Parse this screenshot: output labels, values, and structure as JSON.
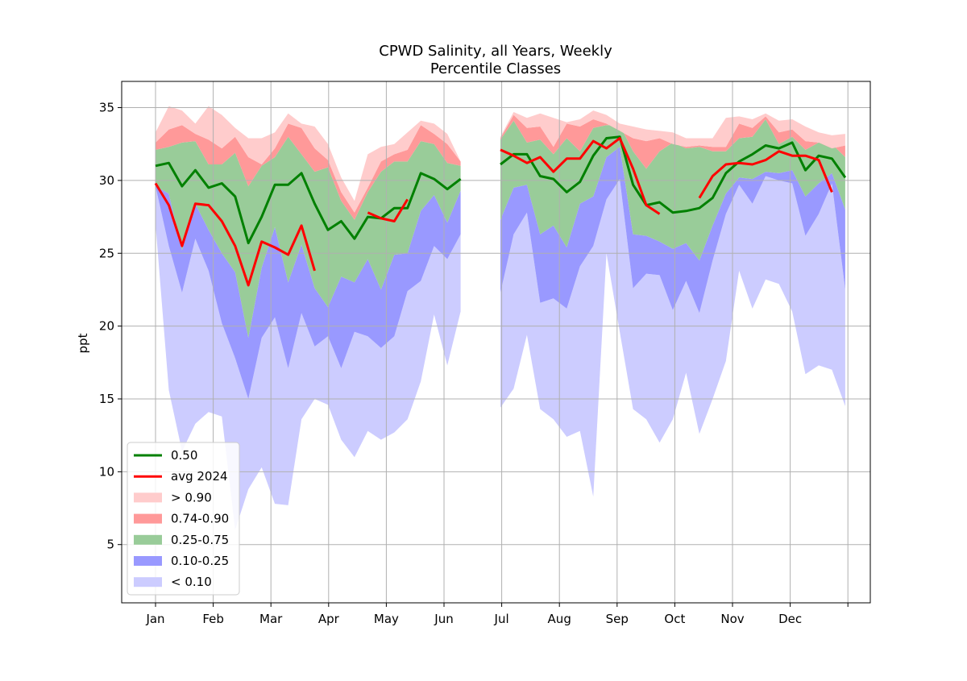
{
  "chart_data": {
    "type": "area",
    "title": "CPWD Salinity, all Years, Weekly",
    "subtitle": "Percentile Classes",
    "xlabel": "",
    "ylabel": "ppt",
    "ylim": [
      1.0,
      36.8
    ],
    "yticks": [
      5,
      10,
      15,
      20,
      25,
      30,
      35
    ],
    "xlim": [
      -0.55,
      12.5
    ],
    "x_tick_positions": [
      0,
      1,
      2,
      3,
      4,
      5,
      6,
      7,
      8,
      9,
      10,
      11,
      12
    ],
    "x_tick_labels": [
      "Jan",
      "Feb",
      "Mar",
      "Apr",
      "May",
      "Jun",
      "Jul",
      "Aug",
      "Sep",
      "Oct",
      "Nov",
      "Dec",
      ""
    ],
    "grid": true,
    "legend_position": "lower-left",
    "legend": [
      {
        "label": "0.50",
        "kind": "line",
        "color": "#008000"
      },
      {
        "label": "avg 2024",
        "kind": "line",
        "color": "#ff0000"
      },
      {
        "label": "> 0.90",
        "kind": "patch",
        "color": "#ffcccc"
      },
      {
        "label": "0.74-0.90",
        "kind": "patch",
        "color": "#ff9999"
      },
      {
        "label": "0.25-0.75",
        "kind": "patch",
        "color": "#99cc99"
      },
      {
        "label": "0.10-0.25",
        "kind": "patch",
        "color": "#9999ff"
      },
      {
        "label": "< 0.10",
        "kind": "patch",
        "color": "#ccccff"
      }
    ],
    "weeks_per_month_unit": 4.35,
    "segments": [
      {
        "start_week": 0,
        "min": [
          27.0,
          15.6,
          11.4,
          13.3,
          14.1,
          13.8,
          6.0,
          8.8,
          10.3,
          7.8,
          7.7,
          13.6,
          15.0,
          14.6,
          12.2,
          11.0,
          12.8,
          12.2,
          12.7,
          13.6,
          16.2,
          20.8,
          17.3,
          21.0
        ],
        "p10": [
          29.6,
          25.5,
          22.3,
          26.0,
          23.8,
          20.2,
          17.8,
          15.0,
          19.2,
          20.6,
          17.1,
          20.9,
          18.6,
          19.3,
          17.1,
          19.6,
          19.3,
          18.5,
          19.3,
          22.4,
          23.1,
          25.5,
          24.6,
          26.3
        ],
        "p25": [
          29.6,
          29.1,
          25.2,
          28.4,
          26.6,
          25.0,
          23.7,
          19.2,
          24.0,
          26.8,
          23.0,
          25.6,
          22.6,
          21.3,
          23.4,
          23.0,
          24.6,
          22.5,
          24.9,
          25.0,
          27.9,
          29.0,
          27.1,
          29.3
        ],
        "p50": [
          31.0,
          31.2,
          29.6,
          30.7,
          29.5,
          29.8,
          28.9,
          25.7,
          27.5,
          29.7,
          29.7,
          30.5,
          28.4,
          26.6,
          27.2,
          26.0,
          27.5,
          27.4,
          28.1,
          28.1,
          30.5,
          30.1,
          29.4,
          30.1
        ],
        "p75": [
          32.1,
          32.3,
          32.6,
          32.7,
          31.1,
          31.1,
          31.9,
          29.6,
          31.0,
          31.6,
          33.0,
          31.8,
          30.6,
          30.9,
          28.6,
          27.3,
          29.2,
          30.6,
          31.3,
          31.3,
          32.7,
          32.5,
          31.2,
          31.0
        ],
        "p90": [
          32.6,
          33.5,
          33.8,
          33.2,
          32.8,
          32.2,
          33.0,
          31.6,
          31.1,
          32.2,
          33.9,
          33.6,
          32.2,
          31.4,
          29.2,
          27.8,
          29.5,
          31.3,
          31.8,
          32.1,
          33.8,
          33.2,
          32.5,
          31.3
        ],
        "max": [
          33.3,
          35.1,
          34.8,
          33.9,
          35.1,
          34.5,
          33.6,
          32.9,
          32.9,
          33.3,
          34.6,
          33.9,
          33.7,
          32.5,
          30.2,
          28.6,
          31.8,
          32.3,
          32.5,
          33.3,
          34.1,
          33.9,
          33.2,
          31.3
        ]
      },
      {
        "start_week": 26,
        "min": [
          14.4,
          15.7,
          19.4,
          14.3,
          13.6,
          12.4,
          12.8,
          8.3,
          25.0,
          19.6,
          14.3,
          13.6,
          12.0,
          13.6,
          16.8,
          12.6,
          15.0,
          17.6,
          23.8,
          21.2,
          23.2,
          22.9,
          21.0,
          16.7,
          17.3,
          17.0,
          14.5
        ],
        "p10": [
          22.3,
          26.3,
          27.8,
          21.6,
          21.9,
          21.2,
          24.1,
          25.5,
          28.7,
          30.1,
          22.6,
          23.6,
          23.5,
          21.1,
          23.1,
          20.9,
          24.5,
          27.7,
          29.7,
          28.4,
          30.3,
          30.0,
          29.8,
          26.2,
          27.7,
          29.8,
          22.5
        ],
        "p25": [
          27.3,
          29.5,
          29.7,
          26.3,
          26.9,
          25.4,
          28.4,
          28.9,
          31.6,
          32.3,
          26.3,
          26.2,
          25.8,
          25.3,
          25.7,
          24.5,
          26.9,
          29.1,
          30.2,
          30.1,
          30.6,
          30.5,
          30.7,
          28.9,
          29.8,
          30.5,
          28.0
        ],
        "p50": [
          31.1,
          31.8,
          31.8,
          30.3,
          30.1,
          29.2,
          29.9,
          31.7,
          32.9,
          33.0,
          29.7,
          28.3,
          28.5,
          27.8,
          27.9,
          28.1,
          28.8,
          30.5,
          31.3,
          31.8,
          32.4,
          32.2,
          32.6,
          30.7,
          31.7,
          31.5,
          30.2
        ],
        "p75": [
          32.8,
          34.1,
          32.6,
          32.8,
          31.8,
          32.9,
          32.0,
          33.6,
          33.8,
          33.8,
          32.0,
          30.8,
          32.0,
          32.6,
          32.2,
          32.3,
          32.0,
          32.0,
          32.9,
          33.0,
          34.2,
          32.5,
          33.0,
          32.1,
          32.6,
          32.5,
          31.6
        ],
        "p90": [
          32.9,
          34.5,
          33.6,
          33.7,
          32.3,
          33.9,
          33.7,
          34.2,
          33.9,
          33.4,
          32.9,
          32.7,
          32.9,
          32.5,
          32.3,
          32.4,
          32.3,
          32.3,
          33.9,
          33.6,
          34.4,
          33.3,
          33.5,
          32.7,
          32.6,
          32.2,
          32.4
        ],
        "max": [
          33.0,
          34.7,
          34.3,
          34.6,
          34.3,
          34.0,
          34.2,
          34.8,
          34.5,
          33.9,
          33.7,
          33.5,
          33.4,
          33.3,
          32.9,
          32.9,
          32.9,
          34.3,
          34.4,
          34.2,
          34.6,
          34.1,
          34.2,
          33.7,
          33.3,
          33.1,
          33.2
        ]
      }
    ],
    "avg_2024": [
      {
        "start_week": 0,
        "values": [
          29.8,
          28.3,
          25.5,
          28.4,
          28.3,
          27.2,
          25.5,
          22.8,
          25.8,
          25.4,
          24.9,
          26.9,
          23.8
        ]
      },
      {
        "start_week": 16,
        "values": [
          27.8,
          27.4,
          27.2,
          28.7
        ]
      },
      {
        "start_week": 26,
        "values": [
          32.1,
          31.7,
          31.2,
          31.6,
          30.6,
          31.5,
          31.5,
          32.7,
          32.2,
          32.9,
          30.8,
          28.3,
          27.7
        ]
      },
      {
        "start_week": 41,
        "values": [
          28.8,
          30.3,
          31.1,
          31.2,
          31.1,
          31.4,
          32.0,
          31.7,
          31.7,
          31.4,
          29.2
        ]
      }
    ]
  }
}
